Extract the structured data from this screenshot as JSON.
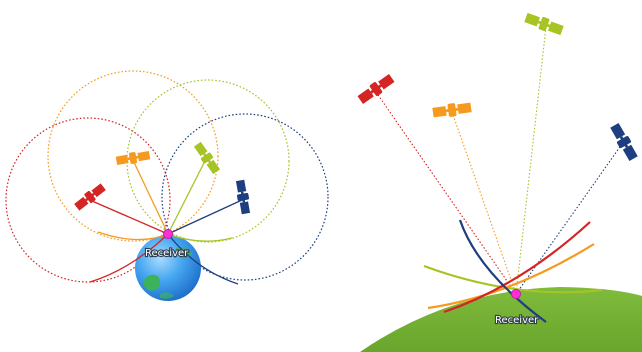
{
  "labels": {
    "left_receiver": "Receiver",
    "right_receiver": "Receiver"
  },
  "colors": {
    "red": "#d42424",
    "orange": "#f59a1e",
    "lime": "#a6c424",
    "navy": "#1d3f80",
    "receiver_dot": "#ff2fd6",
    "earth_blue": "#2f8fe8",
    "earth_land": "#3cb35a",
    "ground_green": "#7cb73a"
  },
  "satellites": [
    {
      "id": "red",
      "icon": "satellite-icon"
    },
    {
      "id": "orange",
      "icon": "satellite-icon"
    },
    {
      "id": "lime",
      "icon": "satellite-icon"
    },
    {
      "id": "navy",
      "icon": "satellite-icon"
    }
  ]
}
